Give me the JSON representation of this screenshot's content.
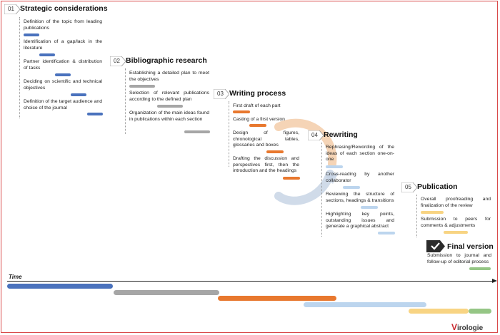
{
  "phases": [
    {
      "num": "01",
      "title": "Strategic considerations",
      "tasks": [
        "Definition of the topic from leading publications",
        "Identification of a gap/lack in the literature",
        "Partner identification & distribution of tasks",
        "Deciding on scientific and technical objectives",
        "Definition of the target audience and choice of the journal"
      ]
    },
    {
      "num": "02",
      "title": "Bibliographic research",
      "tasks": [
        "Establishing a detailed plan to meet the objectives",
        "Selection of relevant publications according to the defined plan",
        "Organization of the main ideas found in publications within each section"
      ]
    },
    {
      "num": "03",
      "title": "Writing process",
      "tasks": [
        "First draft of each part",
        "Casting of a first version",
        "Design of figures, chronological tables, glossaries and boxes",
        "Drafting the discussion and perspectives first, then the introduction and the headings"
      ]
    },
    {
      "num": "04",
      "title": "Rewriting",
      "tasks": [
        "Rephrasing/Rewording of the ideas of each section one-on-one",
        "Cross-reading by another collaborator",
        "Reviewing the structure of sections, headings & transitions",
        "Highlighting key points, outstanding issues and generate a graphical abstract"
      ]
    },
    {
      "num": "05",
      "title": "Publication",
      "tasks": [
        "Overall proofreading and finalization of the review",
        "Submission to peers for comments & adjustments"
      ]
    }
  ],
  "final": {
    "title": "Final version",
    "task": "Submission to journal and follow-up of editorial process"
  },
  "timeline": {
    "label": "Time"
  },
  "logo": {
    "prefix": "V",
    "rest": "irologie"
  },
  "colors": {
    "blue": "#4a72bd",
    "grey": "#a6a6a6",
    "orange": "#e8782e",
    "light_blue": "#bcd5ee",
    "yellow": "#f8d483",
    "green": "#95c685",
    "frame": "#d94a4a"
  }
}
